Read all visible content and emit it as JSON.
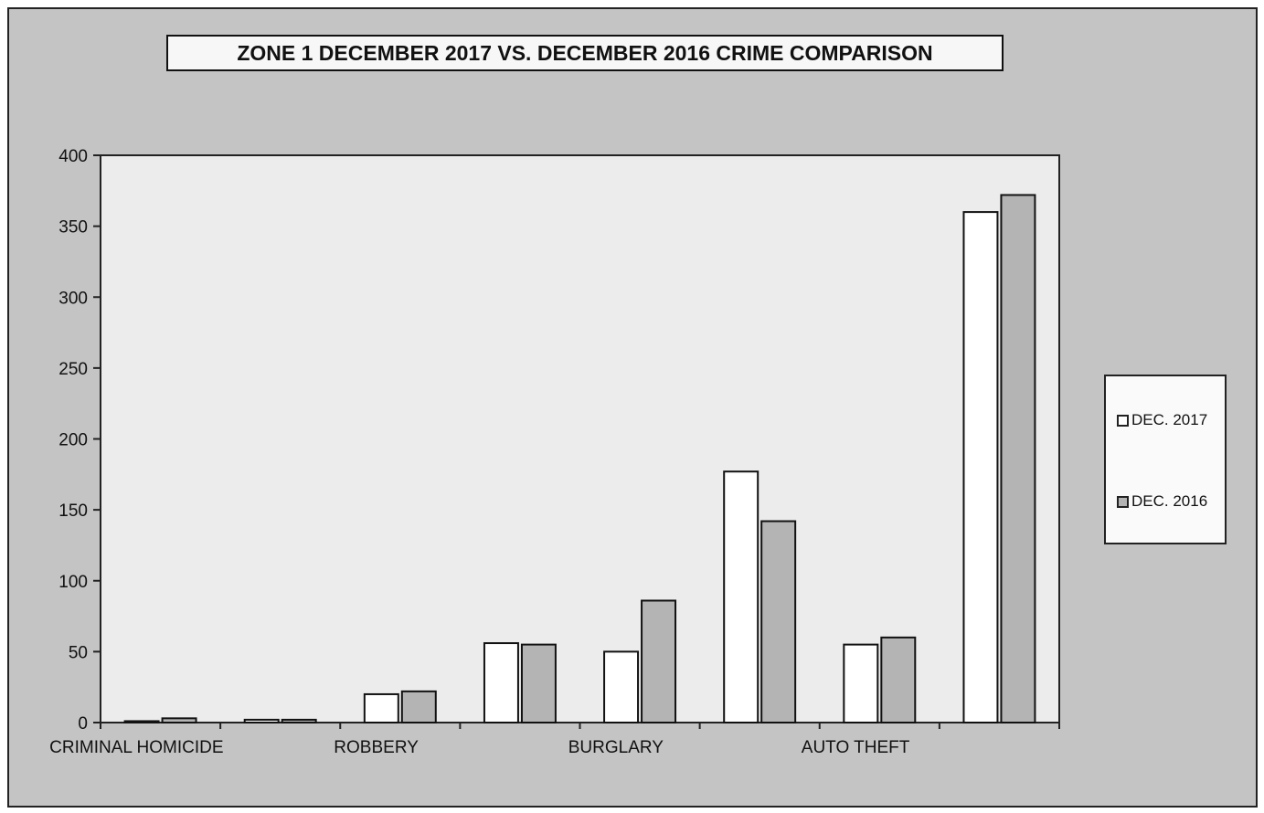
{
  "chart_data": {
    "type": "bar",
    "title": "ZONE 1  DECEMBER 2017  VS. DECEMBER 2016 CRIME COMPARISON",
    "xlabel": "",
    "ylabel": "",
    "ylim": [
      0,
      400
    ],
    "yticks": [
      0,
      50,
      100,
      150,
      200,
      250,
      300,
      350,
      400
    ],
    "category_labels": [
      "CRIMINAL HOMICIDE",
      "",
      "ROBBERY",
      "",
      "BURGLARY",
      "",
      "AUTO THEFT",
      ""
    ],
    "series": [
      {
        "name": "DEC. 2017",
        "color": "#ffffff",
        "values": [
          1,
          2,
          20,
          56,
          50,
          177,
          55,
          360
        ]
      },
      {
        "name": "DEC. 2016",
        "color": "#b4b4b4",
        "values": [
          3,
          2,
          22,
          55,
          86,
          142,
          60,
          372
        ]
      }
    ],
    "legend_position": "right",
    "grid": false,
    "plot_background": "#ececec",
    "frame_background": "#c4c4c4"
  }
}
